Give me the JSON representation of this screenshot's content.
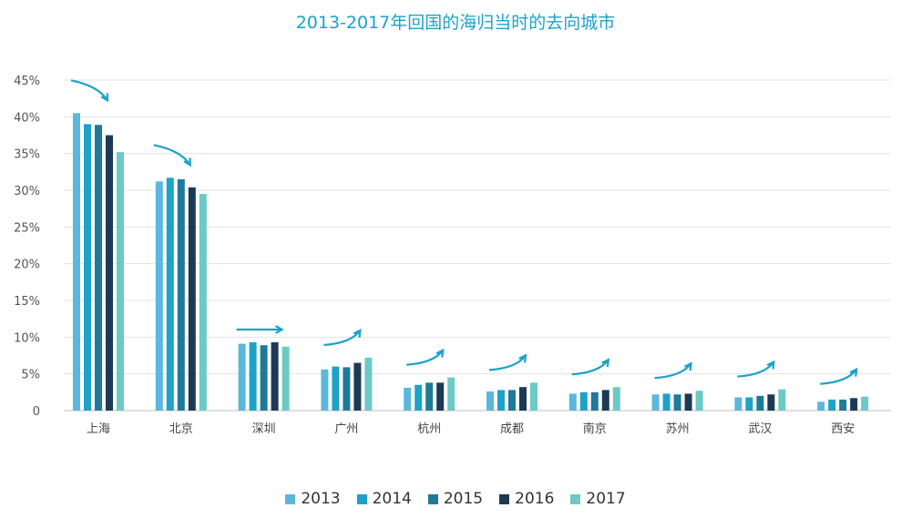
{
  "chart_data": {
    "type": "bar",
    "title": "2013-2017年回国的海归当时的去向城市",
    "xlabel": "",
    "ylabel": "",
    "ylim": [
      0,
      45
    ],
    "yticks": [
      "0",
      "5%",
      "10%",
      "15%",
      "20%",
      "25%",
      "30%",
      "35%",
      "40%",
      "45%"
    ],
    "grid": true,
    "legend_position": "bottom",
    "categories": [
      "上海",
      "北京",
      "深圳",
      "广州",
      "杭州",
      "成都",
      "南京",
      "苏州",
      "武汉",
      "西安"
    ],
    "series": [
      {
        "name": "2013",
        "color": "#5bb7dc",
        "values": [
          40.5,
          31.2,
          9.1,
          5.6,
          3.1,
          2.6,
          2.3,
          2.2,
          1.8,
          1.2
        ]
      },
      {
        "name": "2014",
        "color": "#1ea2c8",
        "values": [
          39.0,
          31.7,
          9.3,
          6.0,
          3.5,
          2.8,
          2.5,
          2.3,
          1.8,
          1.5
        ]
      },
      {
        "name": "2015",
        "color": "#1f7a99",
        "values": [
          38.9,
          31.5,
          8.9,
          5.9,
          3.8,
          2.8,
          2.5,
          2.2,
          2.0,
          1.5
        ]
      },
      {
        "name": "2016",
        "color": "#1c3a55",
        "values": [
          37.5,
          30.4,
          9.3,
          6.5,
          3.8,
          3.2,
          2.8,
          2.3,
          2.2,
          1.7
        ]
      },
      {
        "name": "2017",
        "color": "#6cc9c6",
        "values": [
          35.2,
          29.5,
          8.7,
          7.2,
          4.5,
          3.8,
          3.2,
          2.7,
          2.9,
          1.9
        ]
      }
    ],
    "trend_arrows": [
      "down",
      "down",
      "flat",
      "up",
      "up",
      "up",
      "up",
      "up",
      "up",
      "up"
    ],
    "arrow_color": "#1aa3c8"
  }
}
